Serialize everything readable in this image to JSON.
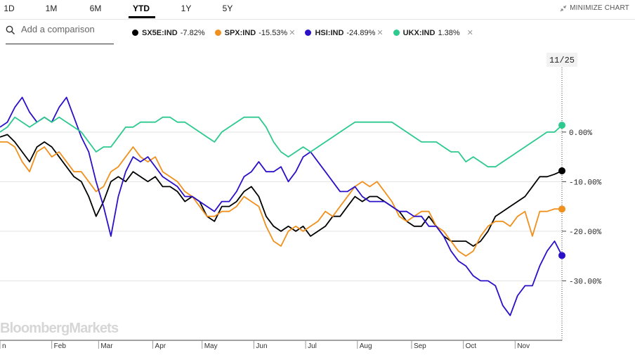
{
  "range_tabs": [
    {
      "label": "1D",
      "active": false
    },
    {
      "label": "1M",
      "active": false
    },
    {
      "label": "6M",
      "active": false
    },
    {
      "label": "YTD",
      "active": true
    },
    {
      "label": "1Y",
      "active": false
    },
    {
      "label": "5Y",
      "active": false
    }
  ],
  "minimize_label": "MINIMIZE CHART",
  "search": {
    "placeholder": "Add a comparison"
  },
  "legend": [
    {
      "symbol": "SX5E:IND",
      "change": "-7.82%",
      "color": "#000000",
      "removable": false
    },
    {
      "symbol": "SPX:IND",
      "change": "-15.53%",
      "color": "#f0901e",
      "removable": true
    },
    {
      "symbol": "HSI:IND",
      "change": "-24.89%",
      "color": "#2a10c8",
      "removable": true
    },
    {
      "symbol": "UKX:IND",
      "change": "1.38%",
      "color": "#2ec98f",
      "removable": true
    }
  ],
  "watermark": "BloombergMarkets",
  "date_tag": "11/25",
  "chart_data": {
    "type": "line",
    "x_unit": "trading day (year to date)",
    "x_tick_labels": [
      "n",
      "Feb",
      "Mar",
      "Apr",
      "May",
      "Jun",
      "Jul",
      "Aug",
      "Sep",
      "Oct",
      "Nov"
    ],
    "x_ticks": [
      1,
      22,
      41,
      63,
      83,
      104,
      125,
      146,
      168,
      189,
      210
    ],
    "xlim": [
      1,
      229
    ],
    "y_tick_labels": [
      "0.00%",
      "-10.00%",
      "-20.00%",
      "-30.00%"
    ],
    "y_ticks": [
      0,
      -10,
      -20,
      -30
    ],
    "ylim": [
      -42,
      16
    ],
    "grid": true,
    "series": [
      {
        "name": "SX5E:IND",
        "color": "#000000",
        "end_label": "-7.82%",
        "points": [
          [
            1,
            -1
          ],
          [
            4,
            -0.5
          ],
          [
            7,
            -2
          ],
          [
            10,
            -4
          ],
          [
            13,
            -6
          ],
          [
            16,
            -3
          ],
          [
            19,
            -2
          ],
          [
            22,
            -3
          ],
          [
            25,
            -5
          ],
          [
            28,
            -7
          ],
          [
            31,
            -9
          ],
          [
            34,
            -10
          ],
          [
            37,
            -13
          ],
          [
            40,
            -17
          ],
          [
            43,
            -14
          ],
          [
            46,
            -10
          ],
          [
            49,
            -9
          ],
          [
            52,
            -10
          ],
          [
            55,
            -8
          ],
          [
            58,
            -9
          ],
          [
            61,
            -10
          ],
          [
            64,
            -9
          ],
          [
            67,
            -11
          ],
          [
            70,
            -11
          ],
          [
            73,
            -12
          ],
          [
            76,
            -14
          ],
          [
            79,
            -13
          ],
          [
            82,
            -14
          ],
          [
            85,
            -17
          ],
          [
            88,
            -18
          ],
          [
            91,
            -15
          ],
          [
            94,
            -15
          ],
          [
            97,
            -14
          ],
          [
            100,
            -12
          ],
          [
            103,
            -11
          ],
          [
            106,
            -13
          ],
          [
            109,
            -17
          ],
          [
            112,
            -19
          ],
          [
            115,
            -20
          ],
          [
            118,
            -19
          ],
          [
            121,
            -20
          ],
          [
            124,
            -19
          ],
          [
            127,
            -21
          ],
          [
            130,
            -20
          ],
          [
            133,
            -19
          ],
          [
            136,
            -17
          ],
          [
            139,
            -17
          ],
          [
            142,
            -15
          ],
          [
            145,
            -13
          ],
          [
            148,
            -14
          ],
          [
            151,
            -13
          ],
          [
            154,
            -13
          ],
          [
            157,
            -14
          ],
          [
            160,
            -15
          ],
          [
            163,
            -16
          ],
          [
            166,
            -18
          ],
          [
            169,
            -19
          ],
          [
            172,
            -19
          ],
          [
            175,
            -17
          ],
          [
            178,
            -19
          ],
          [
            181,
            -21
          ],
          [
            184,
            -22
          ],
          [
            187,
            -22
          ],
          [
            190,
            -22
          ],
          [
            193,
            -23
          ],
          [
            196,
            -22
          ],
          [
            199,
            -20
          ],
          [
            202,
            -17
          ],
          [
            205,
            -16
          ],
          [
            208,
            -15
          ],
          [
            211,
            -14
          ],
          [
            214,
            -13
          ],
          [
            217,
            -11
          ],
          [
            220,
            -9
          ],
          [
            223,
            -9
          ],
          [
            226,
            -8.5
          ],
          [
            229,
            -7.82
          ]
        ]
      },
      {
        "name": "SPX:IND",
        "color": "#f0901e",
        "end_label": "-15.53%",
        "points": [
          [
            1,
            -2
          ],
          [
            4,
            -2
          ],
          [
            7,
            -3
          ],
          [
            10,
            -6
          ],
          [
            13,
            -8
          ],
          [
            16,
            -4
          ],
          [
            19,
            -3
          ],
          [
            22,
            -5
          ],
          [
            25,
            -4
          ],
          [
            28,
            -6
          ],
          [
            31,
            -8
          ],
          [
            34,
            -8
          ],
          [
            37,
            -10
          ],
          [
            40,
            -12
          ],
          [
            43,
            -11
          ],
          [
            46,
            -8
          ],
          [
            49,
            -7
          ],
          [
            52,
            -5
          ],
          [
            55,
            -3
          ],
          [
            58,
            -5
          ],
          [
            61,
            -6
          ],
          [
            64,
            -5
          ],
          [
            67,
            -8
          ],
          [
            70,
            -9
          ],
          [
            73,
            -10
          ],
          [
            76,
            -12
          ],
          [
            79,
            -13
          ],
          [
            82,
            -15
          ],
          [
            85,
            -17
          ],
          [
            88,
            -17
          ],
          [
            91,
            -16
          ],
          [
            94,
            -16
          ],
          [
            97,
            -15
          ],
          [
            100,
            -13
          ],
          [
            103,
            -14
          ],
          [
            106,
            -15
          ],
          [
            109,
            -19
          ],
          [
            112,
            -22
          ],
          [
            115,
            -23
          ],
          [
            118,
            -20
          ],
          [
            121,
            -19
          ],
          [
            124,
            -20
          ],
          [
            127,
            -19
          ],
          [
            130,
            -18
          ],
          [
            133,
            -16
          ],
          [
            136,
            -17
          ],
          [
            139,
            -15
          ],
          [
            142,
            -13
          ],
          [
            145,
            -11
          ],
          [
            148,
            -10
          ],
          [
            151,
            -11
          ],
          [
            154,
            -10
          ],
          [
            157,
            -12
          ],
          [
            160,
            -14
          ],
          [
            163,
            -17
          ],
          [
            166,
            -18
          ],
          [
            169,
            -17
          ],
          [
            172,
            -16
          ],
          [
            175,
            -16
          ],
          [
            178,
            -19
          ],
          [
            181,
            -20
          ],
          [
            184,
            -22
          ],
          [
            187,
            -24
          ],
          [
            190,
            -25
          ],
          [
            193,
            -24
          ],
          [
            196,
            -21
          ],
          [
            199,
            -19
          ],
          [
            202,
            -18
          ],
          [
            205,
            -18
          ],
          [
            208,
            -19
          ],
          [
            211,
            -17
          ],
          [
            214,
            -16
          ],
          [
            217,
            -21
          ],
          [
            220,
            -16
          ],
          [
            223,
            -16
          ],
          [
            226,
            -15.5
          ],
          [
            229,
            -15.53
          ]
        ]
      },
      {
        "name": "HSI:IND",
        "color": "#2a10c8",
        "end_label": "-24.89%",
        "points": [
          [
            1,
            1
          ],
          [
            4,
            2
          ],
          [
            7,
            5
          ],
          [
            10,
            7
          ],
          [
            13,
            4
          ],
          [
            16,
            2
          ],
          [
            19,
            3
          ],
          [
            22,
            2
          ],
          [
            25,
            5
          ],
          [
            28,
            7
          ],
          [
            31,
            3
          ],
          [
            34,
            -1
          ],
          [
            37,
            -4
          ],
          [
            40,
            -10
          ],
          [
            43,
            -15
          ],
          [
            46,
            -21
          ],
          [
            49,
            -13
          ],
          [
            52,
            -8
          ],
          [
            55,
            -5
          ],
          [
            58,
            -6
          ],
          [
            61,
            -5
          ],
          [
            64,
            -7
          ],
          [
            67,
            -9
          ],
          [
            70,
            -10
          ],
          [
            73,
            -11
          ],
          [
            76,
            -13
          ],
          [
            79,
            -13
          ],
          [
            82,
            -14
          ],
          [
            85,
            -15
          ],
          [
            88,
            -16
          ],
          [
            91,
            -14
          ],
          [
            94,
            -14
          ],
          [
            97,
            -12
          ],
          [
            100,
            -9
          ],
          [
            103,
            -8
          ],
          [
            106,
            -6
          ],
          [
            109,
            -8
          ],
          [
            112,
            -8
          ],
          [
            115,
            -7
          ],
          [
            118,
            -10
          ],
          [
            121,
            -8
          ],
          [
            124,
            -5
          ],
          [
            127,
            -4
          ],
          [
            130,
            -6
          ],
          [
            133,
            -8
          ],
          [
            136,
            -10
          ],
          [
            139,
            -12
          ],
          [
            142,
            -12
          ],
          [
            145,
            -11
          ],
          [
            148,
            -13
          ],
          [
            151,
            -14
          ],
          [
            154,
            -14
          ],
          [
            157,
            -14
          ],
          [
            160,
            -15
          ],
          [
            163,
            -16
          ],
          [
            166,
            -16
          ],
          [
            169,
            -17
          ],
          [
            172,
            -17
          ],
          [
            175,
            -19
          ],
          [
            178,
            -19
          ],
          [
            181,
            -21
          ],
          [
            184,
            -24
          ],
          [
            187,
            -26
          ],
          [
            190,
            -27
          ],
          [
            193,
            -29
          ],
          [
            196,
            -30
          ],
          [
            199,
            -30
          ],
          [
            202,
            -31
          ],
          [
            205,
            -35
          ],
          [
            208,
            -37
          ],
          [
            211,
            -33
          ],
          [
            214,
            -31
          ],
          [
            217,
            -31
          ],
          [
            220,
            -27
          ],
          [
            223,
            -24
          ],
          [
            226,
            -22
          ],
          [
            229,
            -24.89
          ]
        ]
      },
      {
        "name": "UKX:IND",
        "color": "#2ec98f",
        "end_label": "1.38%",
        "points": [
          [
            1,
            0
          ],
          [
            4,
            1
          ],
          [
            7,
            3
          ],
          [
            10,
            2
          ],
          [
            13,
            1
          ],
          [
            16,
            2
          ],
          [
            19,
            3
          ],
          [
            22,
            2
          ],
          [
            25,
            3
          ],
          [
            28,
            2
          ],
          [
            31,
            1
          ],
          [
            34,
            0
          ],
          [
            37,
            -2
          ],
          [
            40,
            -4
          ],
          [
            43,
            -3
          ],
          [
            46,
            -3
          ],
          [
            49,
            -1
          ],
          [
            52,
            1
          ],
          [
            55,
            1
          ],
          [
            58,
            2
          ],
          [
            61,
            2
          ],
          [
            64,
            2
          ],
          [
            67,
            3
          ],
          [
            70,
            3
          ],
          [
            73,
            2
          ],
          [
            76,
            2
          ],
          [
            79,
            1
          ],
          [
            82,
            0
          ],
          [
            85,
            -1
          ],
          [
            88,
            -2
          ],
          [
            91,
            0
          ],
          [
            94,
            1
          ],
          [
            97,
            2
          ],
          [
            100,
            3
          ],
          [
            103,
            3
          ],
          [
            106,
            3
          ],
          [
            109,
            1
          ],
          [
            112,
            -2
          ],
          [
            115,
            -4
          ],
          [
            118,
            -5
          ],
          [
            121,
            -4
          ],
          [
            124,
            -3
          ],
          [
            127,
            -4
          ],
          [
            130,
            -3
          ],
          [
            133,
            -2
          ],
          [
            136,
            -1
          ],
          [
            139,
            0
          ],
          [
            142,
            1
          ],
          [
            145,
            2
          ],
          [
            148,
            2
          ],
          [
            151,
            2
          ],
          [
            154,
            2
          ],
          [
            157,
            2
          ],
          [
            160,
            2
          ],
          [
            163,
            1
          ],
          [
            166,
            0
          ],
          [
            169,
            -1
          ],
          [
            172,
            -2
          ],
          [
            175,
            -2
          ],
          [
            178,
            -2
          ],
          [
            181,
            -3
          ],
          [
            184,
            -4
          ],
          [
            187,
            -4
          ],
          [
            190,
            -6
          ],
          [
            193,
            -5
          ],
          [
            196,
            -6
          ],
          [
            199,
            -7
          ],
          [
            202,
            -7
          ],
          [
            205,
            -6
          ],
          [
            208,
            -5
          ],
          [
            211,
            -4
          ],
          [
            214,
            -3
          ],
          [
            217,
            -2
          ],
          [
            220,
            -1
          ],
          [
            223,
            0
          ],
          [
            226,
            0
          ],
          [
            229,
            1.38
          ]
        ]
      }
    ]
  }
}
